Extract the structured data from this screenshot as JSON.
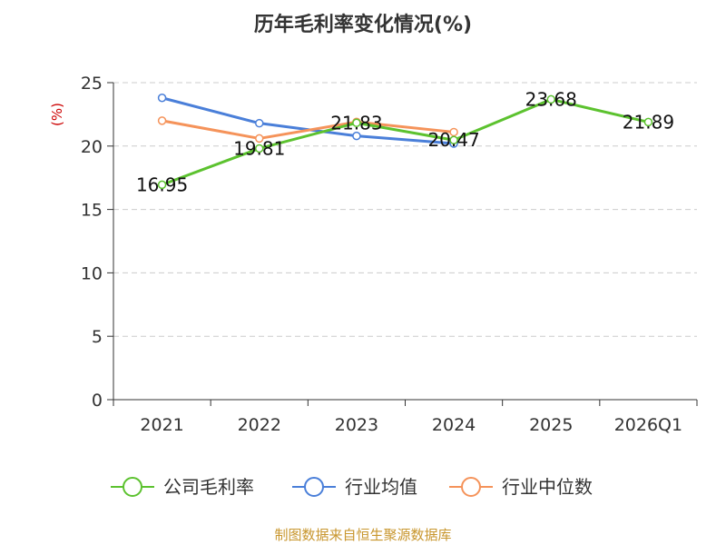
{
  "chart_data": {
    "type": "line",
    "title": "历年毛利率变化情况(%)",
    "ylabel": "(%)",
    "categories": [
      "2021",
      "2022",
      "2023",
      "2024",
      "2025",
      "2026Q1"
    ],
    "ylim": [
      0,
      25
    ],
    "yticks": [
      "0",
      "5",
      "10",
      "15",
      "20",
      "25"
    ],
    "grid": true,
    "legend_position": "bottom",
    "series": [
      {
        "name": "公司毛利率",
        "color": "#5cc22f",
        "values": [
          16.95,
          19.81,
          21.83,
          20.47,
          23.68,
          21.89
        ],
        "labels": [
          "16.95",
          "19.81",
          "21.83",
          "20.47",
          "23.68",
          "21.89"
        ]
      },
      {
        "name": "行业均值",
        "color": "#4a7fd9",
        "values": [
          23.8,
          21.8,
          20.8,
          20.2,
          null,
          null
        ]
      },
      {
        "name": "行业中位数",
        "color": "#f5935a",
        "values": [
          22.0,
          20.6,
          21.9,
          21.1,
          null,
          null
        ]
      }
    ]
  },
  "source_text": "制图数据来自恒生聚源数据库"
}
